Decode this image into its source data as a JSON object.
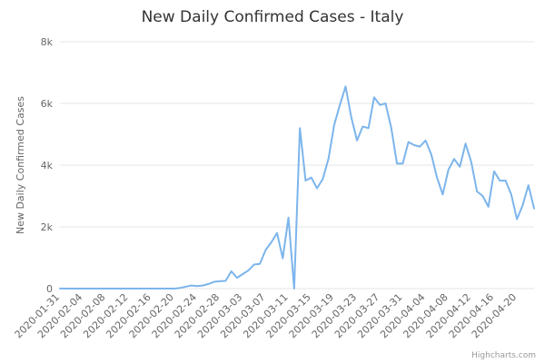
{
  "chart_data": {
    "type": "line",
    "title": "New Daily Confirmed Cases - Italy",
    "ylabel": "New Daily Confirmed Cases",
    "xlabel": "",
    "ylim": [
      0,
      8000
    ],
    "y_ticks": [
      0,
      2000,
      4000,
      6000,
      8000
    ],
    "y_tick_labels": [
      "0",
      "2k",
      "4k",
      "6k",
      "8k"
    ],
    "x_tick_labels": [
      "2020-01-31",
      "2020-02-04",
      "2020-02-08",
      "2020-02-12",
      "2020-02-16",
      "2020-02-20",
      "2020-02-24",
      "2020-02-28",
      "2020-03-03",
      "2020-03-07",
      "2020-03-11",
      "2020-03-15",
      "2020-03-19",
      "2020-03-23",
      "2020-03-27",
      "2020-03-31",
      "2020-04-04",
      "2020-04-08",
      "2020-04-12",
      "2020-04-16",
      "2020-04-20"
    ],
    "grid": true,
    "line_color": "#7cb5ec",
    "grid_color": "#e6e6e6",
    "credits": "Highcharts.com",
    "series": [
      {
        "x": [
          "2020-01-31",
          "2020-02-01",
          "2020-02-02",
          "2020-02-03",
          "2020-02-04",
          "2020-02-05",
          "2020-02-06",
          "2020-02-07",
          "2020-02-08",
          "2020-02-09",
          "2020-02-10",
          "2020-02-11",
          "2020-02-12",
          "2020-02-13",
          "2020-02-14",
          "2020-02-15",
          "2020-02-16",
          "2020-02-17",
          "2020-02-18",
          "2020-02-19",
          "2020-02-20",
          "2020-02-21",
          "2020-02-22",
          "2020-02-23",
          "2020-02-24",
          "2020-02-25",
          "2020-02-26",
          "2020-02-27",
          "2020-02-28",
          "2020-02-29",
          "2020-03-01",
          "2020-03-02",
          "2020-03-03",
          "2020-03-04",
          "2020-03-05",
          "2020-03-06",
          "2020-03-07",
          "2020-03-08",
          "2020-03-09",
          "2020-03-10",
          "2020-03-11",
          "2020-03-12",
          "2020-03-13",
          "2020-03-14",
          "2020-03-15",
          "2020-03-16",
          "2020-03-17",
          "2020-03-18",
          "2020-03-19",
          "2020-03-20",
          "2020-03-21",
          "2020-03-22",
          "2020-03-23",
          "2020-03-24",
          "2020-03-25",
          "2020-03-26",
          "2020-03-27",
          "2020-03-28",
          "2020-03-29",
          "2020-03-30",
          "2020-03-31",
          "2020-04-01",
          "2020-04-02",
          "2020-04-03",
          "2020-04-04",
          "2020-04-05",
          "2020-04-06",
          "2020-04-07",
          "2020-04-08",
          "2020-04-09",
          "2020-04-10",
          "2020-04-11",
          "2020-04-12",
          "2020-04-13",
          "2020-04-14",
          "2020-04-15",
          "2020-04-16",
          "2020-04-17",
          "2020-04-18",
          "2020-04-19",
          "2020-04-20",
          "2020-04-21",
          "2020-04-22",
          "2020-04-23"
        ],
        "values": [
          2,
          0,
          0,
          0,
          0,
          0,
          1,
          0,
          0,
          0,
          0,
          0,
          0,
          0,
          0,
          0,
          0,
          0,
          0,
          0,
          0,
          20,
          60,
          100,
          80,
          100,
          150,
          220,
          240,
          250,
          560,
          350,
          470,
          590,
          780,
          800,
          1250,
          1500,
          1800,
          980,
          2300,
          0,
          5200,
          3500,
          3600,
          3250,
          3550,
          4200,
          5300,
          5950,
          6550,
          5550,
          4800,
          5250,
          5200,
          6200,
          5950,
          6000,
          5200,
          4050,
          4050,
          4750,
          4650,
          4600,
          4800,
          4350,
          3600,
          3050,
          3850,
          4200,
          3950,
          4700,
          4100,
          3150,
          3000,
          2650,
          3800,
          3500,
          3500,
          3050,
          2250,
          2700,
          3350,
          2600
        ]
      }
    ]
  }
}
